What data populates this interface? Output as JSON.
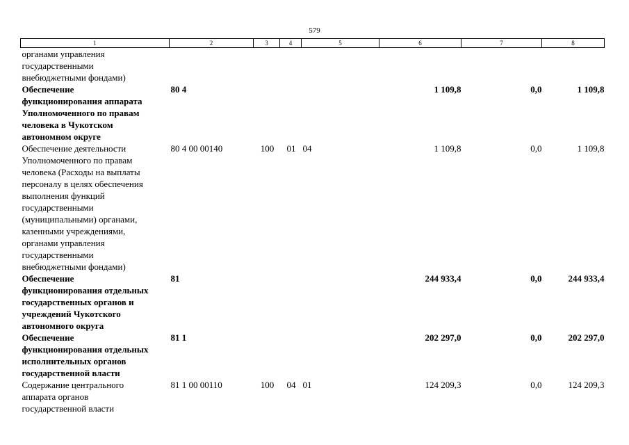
{
  "page_number": "579",
  "header": [
    "1",
    "2",
    "3",
    "4",
    "5",
    "6",
    "7",
    "8"
  ],
  "rows": [
    {
      "bold": false,
      "name": "органами управления\nгосударственными\nвнебюджетными фондами)",
      "csr": "",
      "vr": "",
      "rz": "",
      "pr": "",
      "v6": "",
      "v7": "",
      "v8": ""
    },
    {
      "bold": true,
      "name": "Обеспечение\nфункционирования аппарата\nУполномоченного по правам\nчеловека в Чукотском\nавтономном округе",
      "csr": "80 4",
      "vr": "",
      "rz": "",
      "pr": "",
      "v6": "1 109,8",
      "v7": "0,0",
      "v8": "1 109,8"
    },
    {
      "bold": false,
      "name": "Обеспечение деятельности\nУполномоченного по правам\nчеловека (Расходы на выплаты\nперсоналу в целях обеспечения\nвыполнения функций\nгосударственными\n(муниципальными) органами,\nказенными учреждениями,\nорганами управления\nгосударственными\nвнебюджетными фондами)",
      "csr": "80 4 00 00140",
      "vr": "100",
      "rz": "01",
      "pr": "04",
      "v6": "1 109,8",
      "v7": "0,0",
      "v8": "1 109,8"
    },
    {
      "bold": true,
      "name": "Обеспечение\nфункционирования отдельных\nгосударственных органов и\nучреждений Чукотского\nавтономного округа",
      "csr": "81",
      "vr": "",
      "rz": "",
      "pr": "",
      "v6": "244 933,4",
      "v7": "0,0",
      "v8": "244 933,4"
    },
    {
      "bold": true,
      "name": "Обеспечение\nфункционирования отдельных\nисполнительных органов\nгосударственной власти",
      "csr": "81 1",
      "vr": "",
      "rz": "",
      "pr": "",
      "v6": "202 297,0",
      "v7": "0,0",
      "v8": "202 297,0"
    },
    {
      "bold": false,
      "name": "Содержание центрального\nаппарата органов\nгосударственной власти",
      "csr": "81 1 00 00110",
      "vr": "100",
      "rz": "04",
      "pr": "01",
      "v6": "124 209,3",
      "v7": "0,0",
      "v8": "124 209,3"
    }
  ]
}
